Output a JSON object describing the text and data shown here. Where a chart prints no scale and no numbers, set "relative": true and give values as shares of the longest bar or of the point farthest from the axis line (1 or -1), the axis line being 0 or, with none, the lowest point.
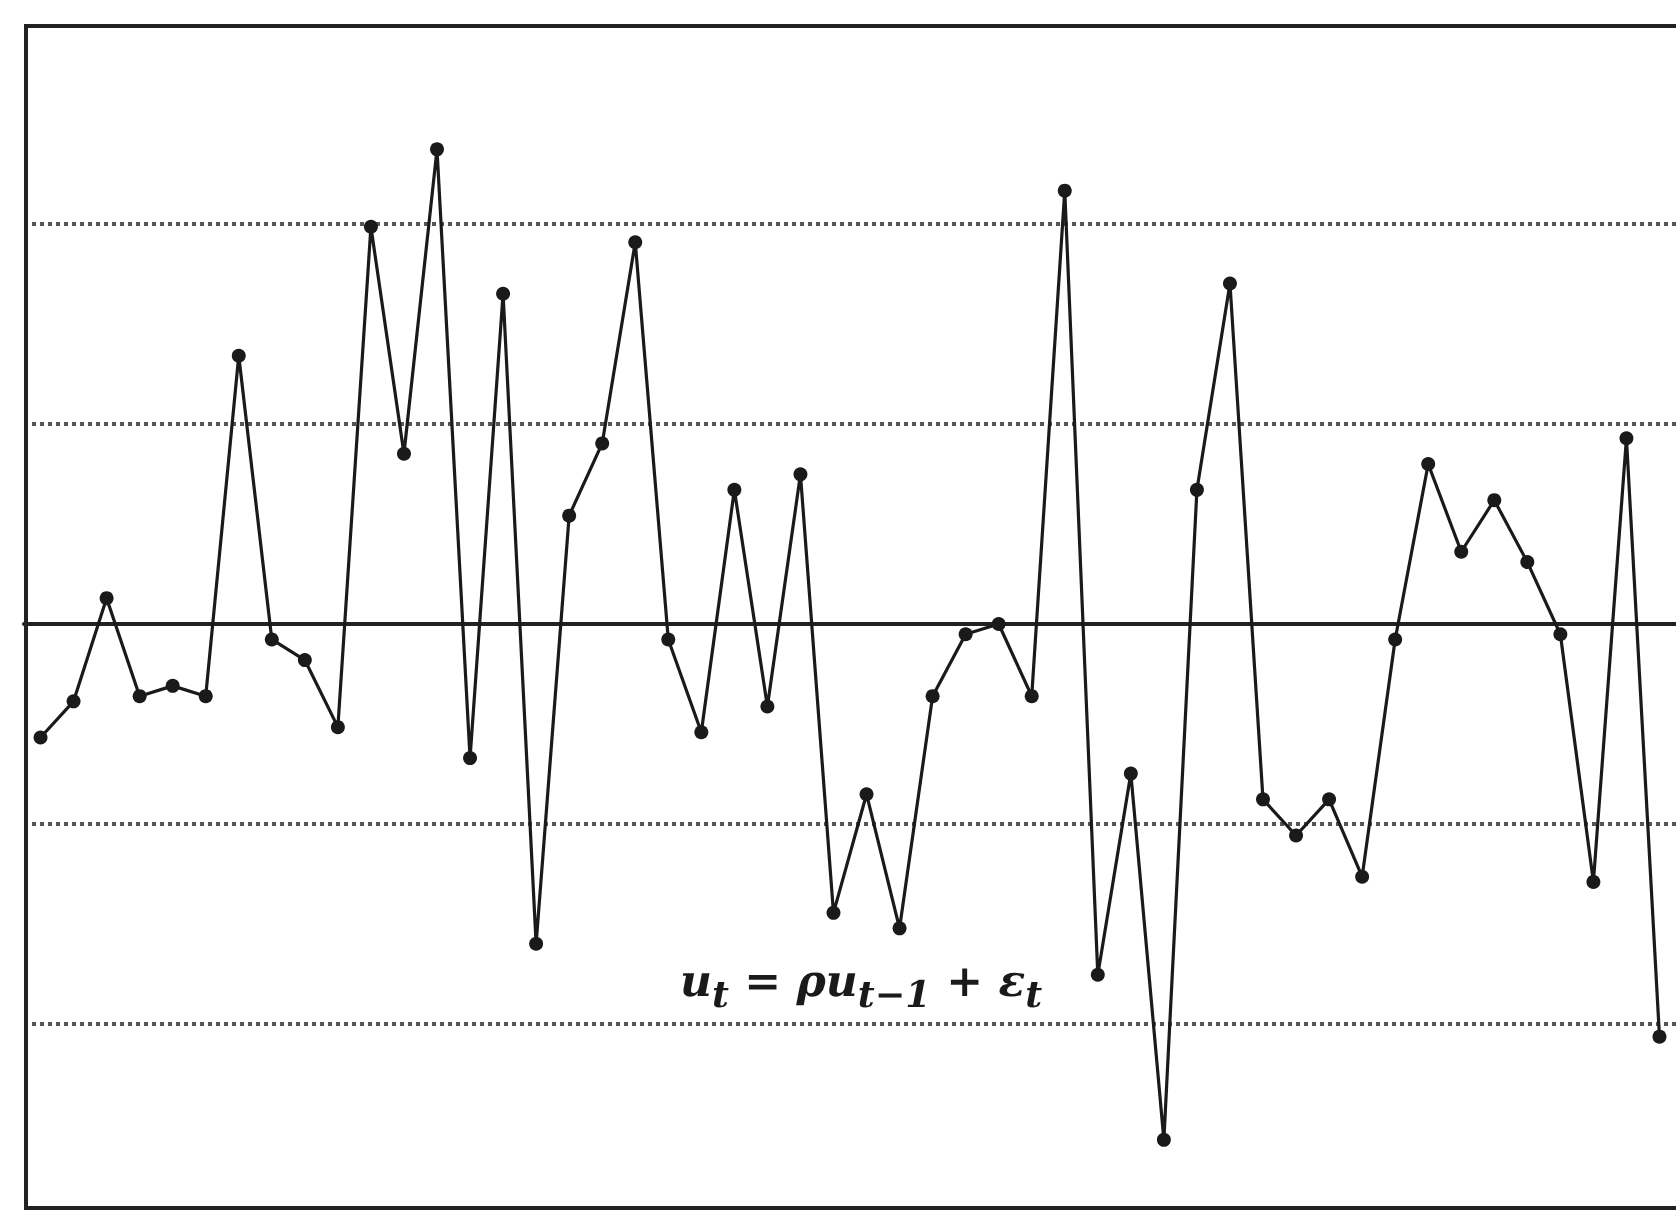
{
  "chart_data": {
    "type": "line",
    "relative": true,
    "grid": true,
    "marker": "circle",
    "line_style": "solid",
    "categories": [
      null,
      null,
      null,
      null,
      null,
      null,
      null,
      null,
      null,
      null,
      null,
      null,
      null,
      null,
      null,
      null,
      null,
      null,
      null,
      null,
      null,
      null,
      null,
      null,
      null,
      null,
      null,
      null,
      null,
      null,
      null,
      null,
      null,
      null,
      null,
      null,
      null,
      null,
      null,
      null,
      null,
      null,
      null,
      null,
      null,
      null,
      null,
      null,
      null,
      null
    ],
    "series": [
      {
        "color": "#1a1a1a",
        "values": [
          -0.22,
          -0.15,
          0.05,
          -0.14,
          -0.12,
          -0.14,
          0.52,
          -0.03,
          -0.07,
          -0.2,
          0.77,
          0.33,
          0.92,
          -0.26,
          0.64,
          -0.62,
          0.21,
          0.35,
          0.74,
          -0.03,
          -0.21,
          0.26,
          -0.16,
          0.29,
          -0.56,
          -0.33,
          -0.59,
          -0.14,
          -0.02,
          0.0,
          -0.14,
          0.84,
          -0.68,
          -0.29,
          -1,
          0.26,
          0.66,
          -0.34,
          -0.41,
          -0.34,
          -0.49,
          -0.03,
          0.31,
          0.14,
          0.24,
          0.12,
          -0.02,
          -0.5,
          0.36,
          -0.8
        ]
      }
    ],
    "annotations": [
      "u$_{t}$ = ρu$_{t−1}$ + ε$_{t}$"
    ]
  }
}
